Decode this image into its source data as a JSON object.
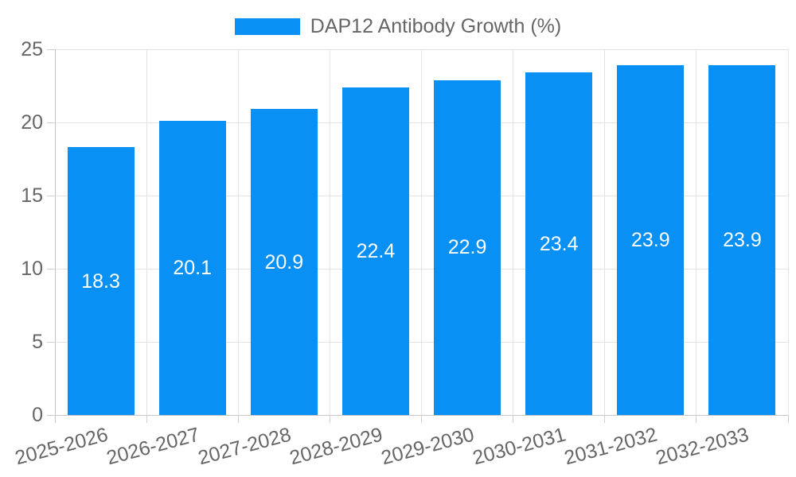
{
  "legend": {
    "label": "DAP12 Antibody Growth (%)"
  },
  "chart_data": {
    "type": "bar",
    "title": "DAP12 Antibody Growth (%)",
    "categories": [
      "2025-2026",
      "2026-2027",
      "2027-2028",
      "2028-2029",
      "2029-2030",
      "2030-2031",
      "2031-2032",
      "2032-2033"
    ],
    "values": [
      18.3,
      20.1,
      20.9,
      22.4,
      22.9,
      23.4,
      23.9,
      23.9
    ],
    "value_labels": [
      "18.3",
      "20.1",
      "20.9",
      "22.4",
      "22.9",
      "23.4",
      "23.9",
      "23.9"
    ],
    "xlabel": "",
    "ylabel": "",
    "ylim": [
      0,
      25
    ],
    "yticks": [
      0,
      5,
      10,
      15,
      20,
      25
    ],
    "grid": true,
    "legend_position": "top",
    "x_label_rotation_deg": -15,
    "colors": {
      "bar": "#0990f5",
      "bar_label_text": "#ffffff",
      "axis_text": "#666666",
      "grid_line": "#e3e3e3",
      "axis_line": "#c6c6c6"
    }
  }
}
